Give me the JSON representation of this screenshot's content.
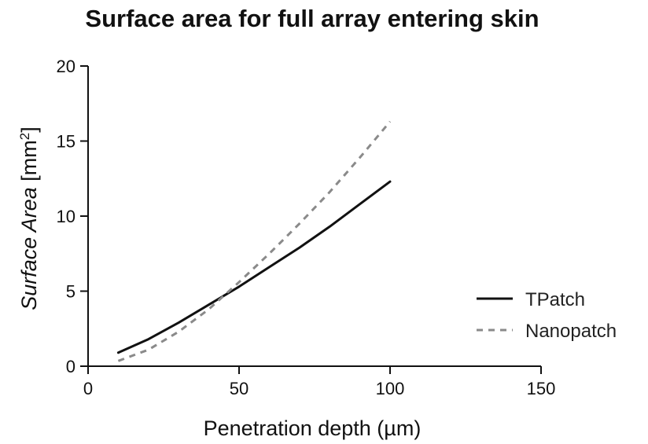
{
  "chart_data": {
    "type": "line",
    "title": "Surface area for full array entering skin",
    "xlabel": "Penetration depth (µm)",
    "ylabel": {
      "main_italic": "Surface Area",
      "unit_open": " [mm",
      "unit_sup": "2",
      "unit_close": "]"
    },
    "xlim": [
      0,
      150
    ],
    "ylim": [
      0,
      20
    ],
    "xticks": [
      0,
      50,
      100,
      150
    ],
    "yticks": [
      0,
      5,
      10,
      15,
      20
    ],
    "grid": false,
    "legend_position": "right",
    "x": [
      10,
      20,
      30,
      40,
      50,
      60,
      70,
      80,
      90,
      100
    ],
    "series": [
      {
        "name": "TPatch",
        "style": "solid",
        "color": "#111111",
        "values": [
          0.9,
          1.8,
          2.9,
          4.1,
          5.3,
          6.6,
          7.9,
          9.3,
          10.8,
          12.3
        ]
      },
      {
        "name": "Nanopatch",
        "style": "dashed",
        "color": "#8a8a8a",
        "values": [
          0.35,
          1.1,
          2.3,
          3.8,
          5.6,
          7.5,
          9.5,
          11.6,
          13.9,
          16.3
        ]
      }
    ]
  }
}
